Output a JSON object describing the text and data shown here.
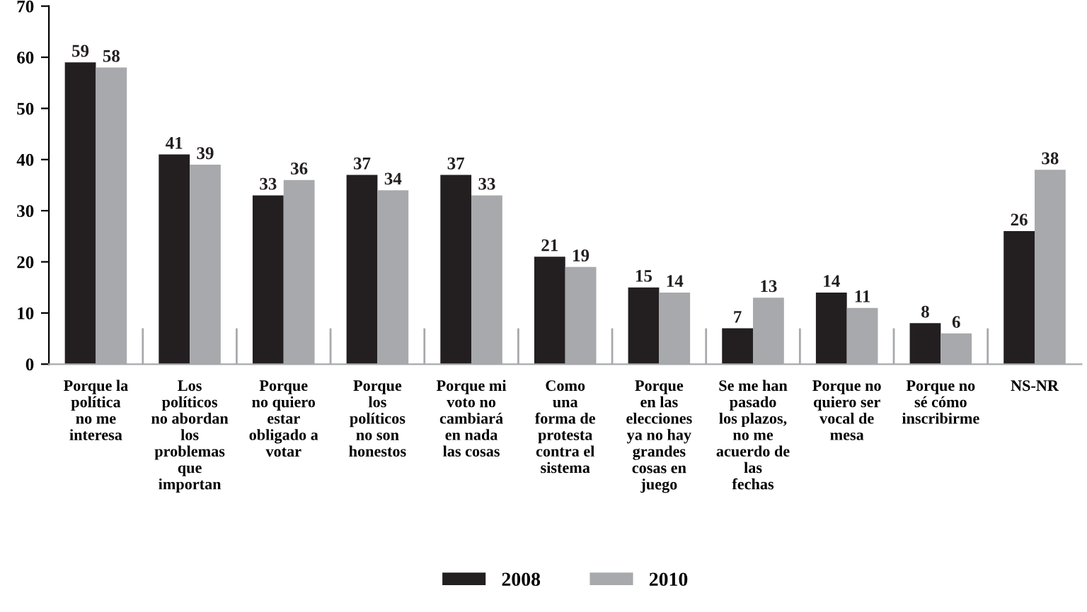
{
  "chart_data": {
    "type": "bar",
    "categories": [
      "Porque la\npolítica\nno me\ninteresa",
      "Los\npolíticos\nno abordan\nlos\nproblemas\nque\nimportan",
      "Porque\nno quiero\nestar\nobligado a\nvotar",
      "Porque\nlos\npolíticos\nno son\nhonestos",
      "Porque mi\nvoto no\ncambiará\nen nada\nlas cosas",
      "Como\nuna\nforma de\nprotesta\ncontra el\nsistema",
      "Porque\nen las\nelecciones\nya no hay\ngrandes\ncosas en\njuego",
      "Se me han\npasado\nlos plazos,\nno me\nacuerdo de\nlas\nfechas",
      "Porque no\nquiero ser\nvocal de\nmesa",
      "Porque no\nsé cómo\ninscribirme",
      "NS-NR"
    ],
    "series": [
      {
        "name": "2008",
        "color": "#231f20",
        "values": [
          59,
          41,
          33,
          37,
          37,
          21,
          15,
          7,
          14,
          8,
          26
        ]
      },
      {
        "name": "2010",
        "color": "#a7a9ac",
        "values": [
          58,
          39,
          36,
          34,
          33,
          19,
          14,
          13,
          11,
          6,
          38
        ]
      }
    ],
    "ylim": [
      0,
      70
    ],
    "yticks": [
      0,
      10,
      20,
      30,
      40,
      50,
      60,
      70
    ],
    "data_labels": true,
    "grid": false,
    "legend": "bottom"
  }
}
